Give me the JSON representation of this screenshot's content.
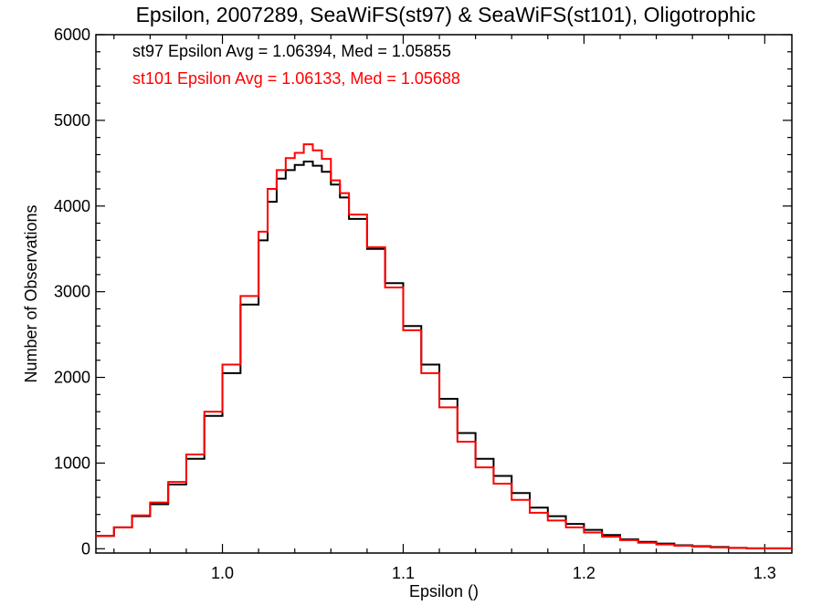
{
  "chart_data": {
    "type": "line",
    "title": "Epsilon, 2007289, SeaWiFS(st97) & SeaWiFS(st101), Oligotrophic",
    "xlabel": "Epsilon ()",
    "ylabel": "Number of Observations",
    "xlim": [
      0.93,
      1.315
    ],
    "ylim": [
      -50,
      6000
    ],
    "xticks": [
      1.0,
      1.1,
      1.2,
      1.3
    ],
    "xtick_labels": [
      "1.0",
      "1.1",
      "1.2",
      "1.3"
    ],
    "yticks": [
      0,
      1000,
      2000,
      3000,
      4000,
      5000,
      6000
    ],
    "ytick_labels": [
      "0",
      "1000",
      "2000",
      "3000",
      "4000",
      "5000",
      "6000"
    ],
    "legend": [
      {
        "text": "st97 Epsilon Avg = 1.06394, Med = 1.05855",
        "color": "#000000"
      },
      {
        "text": "st101 Epsilon Avg = 1.06133, Med = 1.05688",
        "color": "#ff0000"
      }
    ],
    "series": [
      {
        "color": "#000000",
        "x": [
          0.93,
          0.94,
          0.95,
          0.96,
          0.97,
          0.98,
          0.99,
          1.0,
          1.01,
          1.02,
          1.025,
          1.03,
          1.035,
          1.04,
          1.045,
          1.05,
          1.055,
          1.06,
          1.065,
          1.07,
          1.08,
          1.09,
          1.1,
          1.11,
          1.12,
          1.13,
          1.14,
          1.15,
          1.16,
          1.17,
          1.18,
          1.19,
          1.2,
          1.21,
          1.22,
          1.23,
          1.24,
          1.25,
          1.26,
          1.27,
          1.28,
          1.29,
          1.3,
          1.315
        ],
        "values": [
          150,
          250,
          380,
          520,
          750,
          1050,
          1550,
          2050,
          2850,
          3600,
          4050,
          4320,
          4420,
          4480,
          4520,
          4470,
          4400,
          4250,
          4100,
          3850,
          3500,
          3100,
          2600,
          2150,
          1750,
          1350,
          1050,
          850,
          650,
          480,
          380,
          290,
          220,
          160,
          110,
          80,
          60,
          40,
          30,
          20,
          10,
          5,
          5,
          0
        ]
      },
      {
        "color": "#ff0000",
        "x": [
          0.93,
          0.94,
          0.95,
          0.96,
          0.97,
          0.98,
          0.99,
          1.0,
          1.01,
          1.02,
          1.025,
          1.03,
          1.035,
          1.04,
          1.045,
          1.05,
          1.055,
          1.06,
          1.065,
          1.07,
          1.08,
          1.09,
          1.1,
          1.11,
          1.12,
          1.13,
          1.14,
          1.15,
          1.16,
          1.17,
          1.18,
          1.19,
          1.2,
          1.21,
          1.22,
          1.23,
          1.24,
          1.25,
          1.26,
          1.27,
          1.28,
          1.29,
          1.3,
          1.315
        ],
        "values": [
          150,
          250,
          390,
          540,
          780,
          1100,
          1600,
          2150,
          2950,
          3700,
          4200,
          4420,
          4560,
          4620,
          4720,
          4650,
          4550,
          4300,
          4150,
          3900,
          3520,
          3050,
          2550,
          2050,
          1650,
          1250,
          950,
          760,
          570,
          420,
          330,
          250,
          190,
          140,
          100,
          70,
          50,
          35,
          25,
          15,
          10,
          5,
          5,
          0
        ]
      }
    ]
  }
}
